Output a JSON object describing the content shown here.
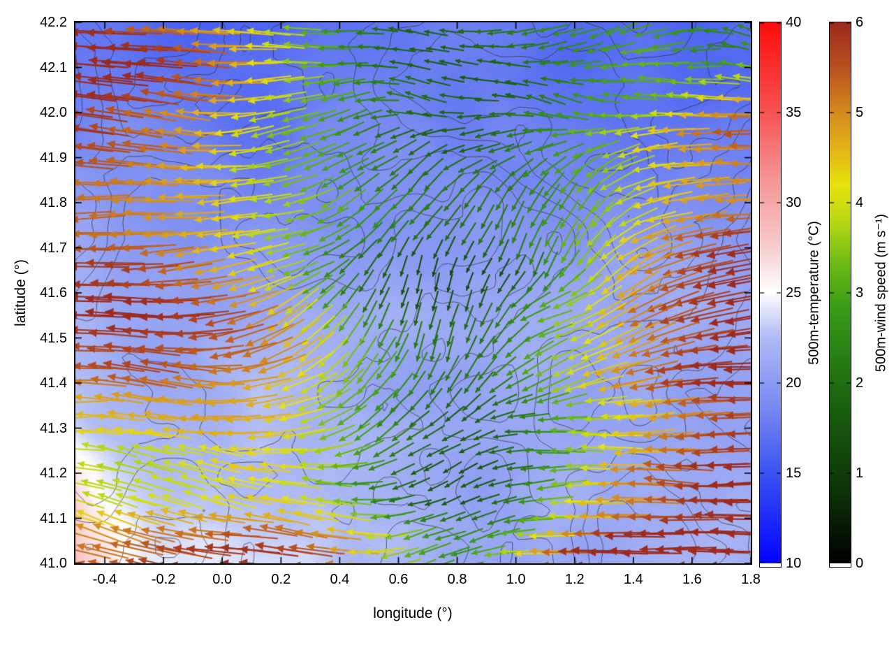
{
  "chart_data": {
    "type": "heatmap",
    "subtype": "temperature field with wind-speed quiver overlay and contour lines",
    "title": "",
    "xlabel": "longitude (°)",
    "ylabel": "latitude (°)",
    "x_range": [
      -0.5,
      1.8
    ],
    "y_range": [
      41.0,
      42.2
    ],
    "x_tick_values": [
      -0.4,
      -0.2,
      0.0,
      0.2,
      0.4,
      0.6,
      0.8,
      1.0,
      1.2,
      1.4,
      1.6,
      1.8
    ],
    "x_tick_labels": [
      "-0.4",
      "-0.2",
      "0.0",
      "0.2",
      "0.4",
      "0.6",
      "0.8",
      "1.0",
      "1.2",
      "1.4",
      "1.6",
      "1.8"
    ],
    "y_tick_values": [
      41.0,
      41.1,
      41.2,
      41.3,
      41.4,
      41.5,
      41.6,
      41.7,
      41.8,
      41.9,
      42.0,
      42.1,
      42.2
    ],
    "y_tick_labels": [
      "41.0",
      "41.1",
      "41.2",
      "41.3",
      "41.4",
      "41.5",
      "41.6",
      "41.7",
      "41.8",
      "41.9",
      "42.0",
      "42.1",
      "42.2"
    ],
    "grid": "faint dotted gridlines at each tick",
    "colorbars": [
      {
        "id": "temperature",
        "label": "500m-temperature (°C)",
        "min": 10,
        "max": 40,
        "tick_values": [
          10,
          15,
          20,
          25,
          30,
          35,
          40
        ],
        "tick_labels": [
          "10",
          "15",
          "20",
          "25",
          "30",
          "35",
          "40"
        ],
        "stops": [
          [
            0.0,
            "#0202ff"
          ],
          [
            0.17,
            "#3c55f2"
          ],
          [
            0.3,
            "#7d8ef2"
          ],
          [
            0.42,
            "#b0bcf5"
          ],
          [
            0.5,
            "#ffffff"
          ],
          [
            0.6,
            "#f7c6c6"
          ],
          [
            0.72,
            "#f59090"
          ],
          [
            0.85,
            "#f74b4b"
          ],
          [
            1.0,
            "#fb0d0d"
          ]
        ]
      },
      {
        "id": "wind-speed",
        "label": "500m-wind speed (m s⁻¹)",
        "min": 0,
        "max": 6,
        "tick_values": [
          0,
          1,
          2,
          3,
          4,
          5,
          6
        ],
        "tick_labels": [
          "0",
          "1",
          "2",
          "3",
          "4",
          "5",
          "6"
        ],
        "stops": [
          [
            0.0,
            "#000000"
          ],
          [
            0.14,
            "#0d3607"
          ],
          [
            0.3,
            "#1b6410"
          ],
          [
            0.47,
            "#389b16"
          ],
          [
            0.56,
            "#71bd17"
          ],
          [
            0.63,
            "#b8d714"
          ],
          [
            0.7,
            "#e8e20f"
          ],
          [
            0.77,
            "#e3b219"
          ],
          [
            0.84,
            "#d3861d"
          ],
          [
            0.92,
            "#b84f1e"
          ],
          [
            1.0,
            "#9c2a1e"
          ]
        ]
      }
    ],
    "overlays": {
      "contours": {
        "color": "#2d2d2d",
        "description": "thin irregular unlabeled terrain-like contour lines across the whole map"
      },
      "quiver": {
        "description": "dense grid of wind arrows, mostly pointing west (left); arrow colour and length encode 500 m wind speed from 0 (black, short) to 6 m/s (dark red, long)",
        "speed_range_ms": [
          0,
          6
        ]
      }
    },
    "field_summary": {
      "temperature": "mostly 15-25 °C: pale blue/periwinkle shading over most of the map, cooler darker-blue patches in the upper-right and top-centre, near-white (~25 °C) bands in the lower third, slight pink (>25 °C) along the lower-left edge",
      "wind_speed": "strong 5-6 m/s (dark red) westward flow over the western half and in bands across the east; weak 1-3 m/s (green, veering southward) winds in a central corridor near longitude 0.5-0.9; yellow-orange 3-5 m/s transition zones in the south-west, bottom rows and north-east corner"
    }
  }
}
